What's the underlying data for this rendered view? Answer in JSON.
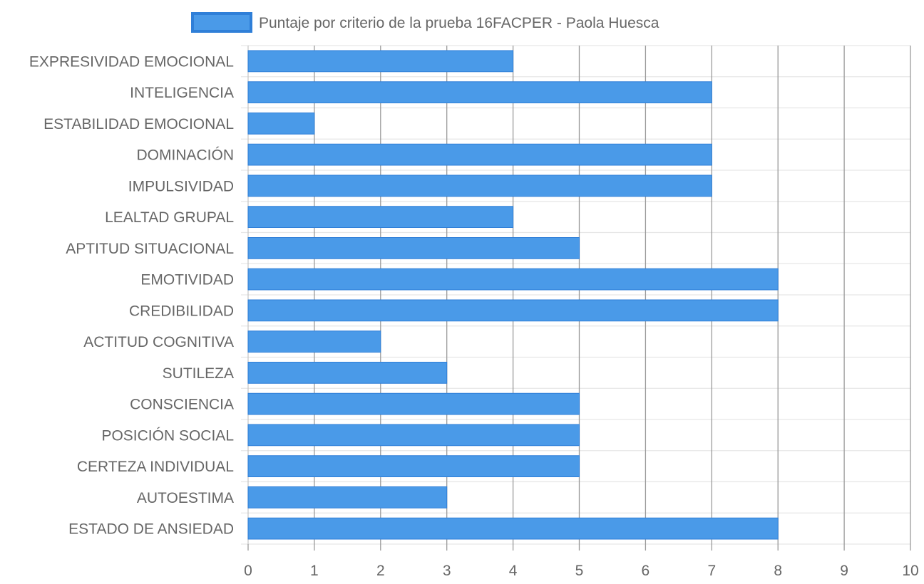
{
  "chart_data": {
    "type": "bar",
    "orientation": "horizontal",
    "title": "",
    "xlabel": "",
    "ylabel": "",
    "xlim": [
      0,
      10
    ],
    "x_ticks": [
      "0",
      "1",
      "2",
      "3",
      "4",
      "5",
      "6",
      "7",
      "8",
      "9",
      "10"
    ],
    "grid": true,
    "legend_position": "top",
    "colors": {
      "bar_fill": "#4a9ae8",
      "bar_border": "#2f7fd8",
      "grid": "#e6e6e6",
      "vgrid": "#9a9a9a"
    },
    "categories": [
      "EXPRESIVIDAD EMOCIONAL",
      "INTELIGENCIA",
      "ESTABILIDAD EMOCIONAL",
      "DOMINACIÓN",
      "IMPULSIVIDAD",
      "LEALTAD GRUPAL",
      "APTITUD SITUACIONAL",
      "EMOTIVIDAD",
      "CREDIBILIDAD",
      "ACTITUD COGNITIVA",
      "SUTILEZA",
      "CONSCIENCIA",
      "POSICIÓN SOCIAL",
      "CERTEZA INDIVIDUAL",
      "AUTOESTIMA",
      "ESTADO DE ANSIEDAD"
    ],
    "series": [
      {
        "name": "Puntaje por criterio de la prueba 16FACPER - Paola Huesca",
        "values": [
          4,
          7,
          1,
          7,
          7,
          4,
          5,
          8,
          8,
          2,
          3,
          5,
          5,
          5,
          3,
          8
        ]
      }
    ]
  }
}
